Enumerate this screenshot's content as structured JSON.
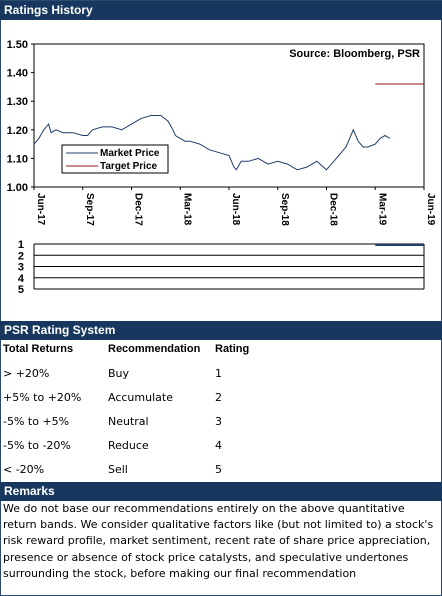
{
  "sections": {
    "ratings_title": "Ratings History",
    "psr_title": "PSR Rating System",
    "remarks_title": "Remarks"
  },
  "colors": {
    "band": "#17375e",
    "market_line": "#1f3f6a",
    "target_line": "#8b1a1a",
    "rating_line": "#1f3f6a"
  },
  "chart_data": [
    {
      "type": "line",
      "source_label": "Source: Bloomberg, PSR",
      "x_ticks": [
        "Jun-17",
        "Sep-17",
        "Dec-17",
        "Mar-18",
        "Jun-18",
        "Sep-18",
        "Dec-18",
        "Mar-19",
        "Jun-19"
      ],
      "y_ticks": [
        "1.50",
        "1.40",
        "1.30",
        "1.20",
        "1.10",
        "1.00"
      ],
      "ylim": [
        1.0,
        1.5
      ],
      "grid": false,
      "legend_position": "left-middle",
      "series": [
        {
          "name": "Market Price",
          "points": [
            [
              0,
              1.15
            ],
            [
              0.1,
              1.17
            ],
            [
              0.2,
              1.2
            ],
            [
              0.3,
              1.22
            ],
            [
              0.35,
              1.19
            ],
            [
              0.45,
              1.2
            ],
            [
              0.6,
              1.19
            ],
            [
              0.8,
              1.19
            ],
            [
              1.0,
              1.18
            ],
            [
              1.1,
              1.18
            ],
            [
              1.2,
              1.2
            ],
            [
              1.4,
              1.21
            ],
            [
              1.6,
              1.21
            ],
            [
              1.8,
              1.2
            ],
            [
              2.0,
              1.22
            ],
            [
              2.2,
              1.24
            ],
            [
              2.4,
              1.25
            ],
            [
              2.6,
              1.25
            ],
            [
              2.75,
              1.23
            ],
            [
              2.85,
              1.2
            ],
            [
              2.9,
              1.18
            ],
            [
              3.0,
              1.17
            ],
            [
              3.1,
              1.16
            ],
            [
              3.2,
              1.16
            ],
            [
              3.4,
              1.15
            ],
            [
              3.6,
              1.13
            ],
            [
              3.8,
              1.12
            ],
            [
              4.0,
              1.11
            ],
            [
              4.1,
              1.07
            ],
            [
              4.15,
              1.06
            ],
            [
              4.25,
              1.09
            ],
            [
              4.4,
              1.09
            ],
            [
              4.6,
              1.1
            ],
            [
              4.8,
              1.08
            ],
            [
              5.0,
              1.09
            ],
            [
              5.2,
              1.08
            ],
            [
              5.4,
              1.06
            ],
            [
              5.6,
              1.07
            ],
            [
              5.8,
              1.09
            ],
            [
              6.0,
              1.06
            ],
            [
              6.1,
              1.08
            ],
            [
              6.2,
              1.1
            ],
            [
              6.3,
              1.12
            ],
            [
              6.4,
              1.14
            ],
            [
              6.5,
              1.18
            ],
            [
              6.55,
              1.2
            ],
            [
              6.65,
              1.16
            ],
            [
              6.75,
              1.14
            ],
            [
              6.85,
              1.14
            ],
            [
              7.0,
              1.15
            ],
            [
              7.1,
              1.17
            ],
            [
              7.2,
              1.18
            ],
            [
              7.3,
              1.17
            ]
          ]
        },
        {
          "name": "Target Price",
          "points": [
            [
              7.0,
              1.36
            ],
            [
              8.0,
              1.36
            ]
          ]
        }
      ]
    },
    {
      "type": "line",
      "y_ticks": [
        "1",
        "2",
        "3",
        "4",
        "5"
      ],
      "ylim": [
        1,
        5
      ],
      "series": [
        {
          "points": [
            [
              7.0,
              1
            ],
            [
              8.0,
              1
            ]
          ]
        }
      ]
    }
  ],
  "psr_table": {
    "headers": [
      "Total Returns",
      "Recommendation",
      "Rating"
    ],
    "rows": [
      [
        "> +20%",
        "Buy",
        "1"
      ],
      [
        "+5% to +20%",
        "Accumulate",
        "2"
      ],
      [
        "-5% to +5%",
        "Neutral",
        "3"
      ],
      [
        "-5% to -20%",
        "Reduce",
        "4"
      ],
      [
        "< -20%",
        "Sell",
        "5"
      ]
    ]
  },
  "remarks": {
    "text": "We do not base our recommendations entirely on the  above quantitative return bands.  We consider qualitative factors like (but not limited to) a stock's risk reward profile, market sentiment, recent rate of share price appreciation, presence or absence of stock price catalysts, and speculative undertones surrounding the stock, before making our final recommendation"
  }
}
